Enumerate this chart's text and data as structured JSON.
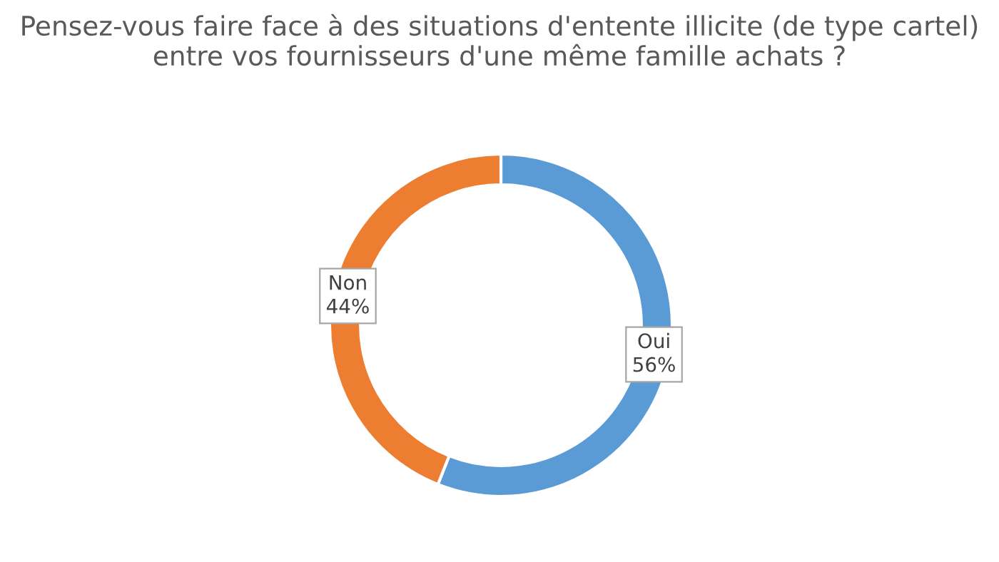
{
  "chart_data": {
    "type": "donut",
    "title": "Pensez-vous faire face à des situations d'entente illicite (de type cartel) entre vos fournisseurs d'une même famille achats ?",
    "categories": [
      "Oui",
      "Non"
    ],
    "values": [
      56,
      44
    ],
    "value_labels": [
      "56%",
      "44%"
    ],
    "colors": [
      "#5b9bd5",
      "#ed7d31"
    ],
    "legend": false
  }
}
